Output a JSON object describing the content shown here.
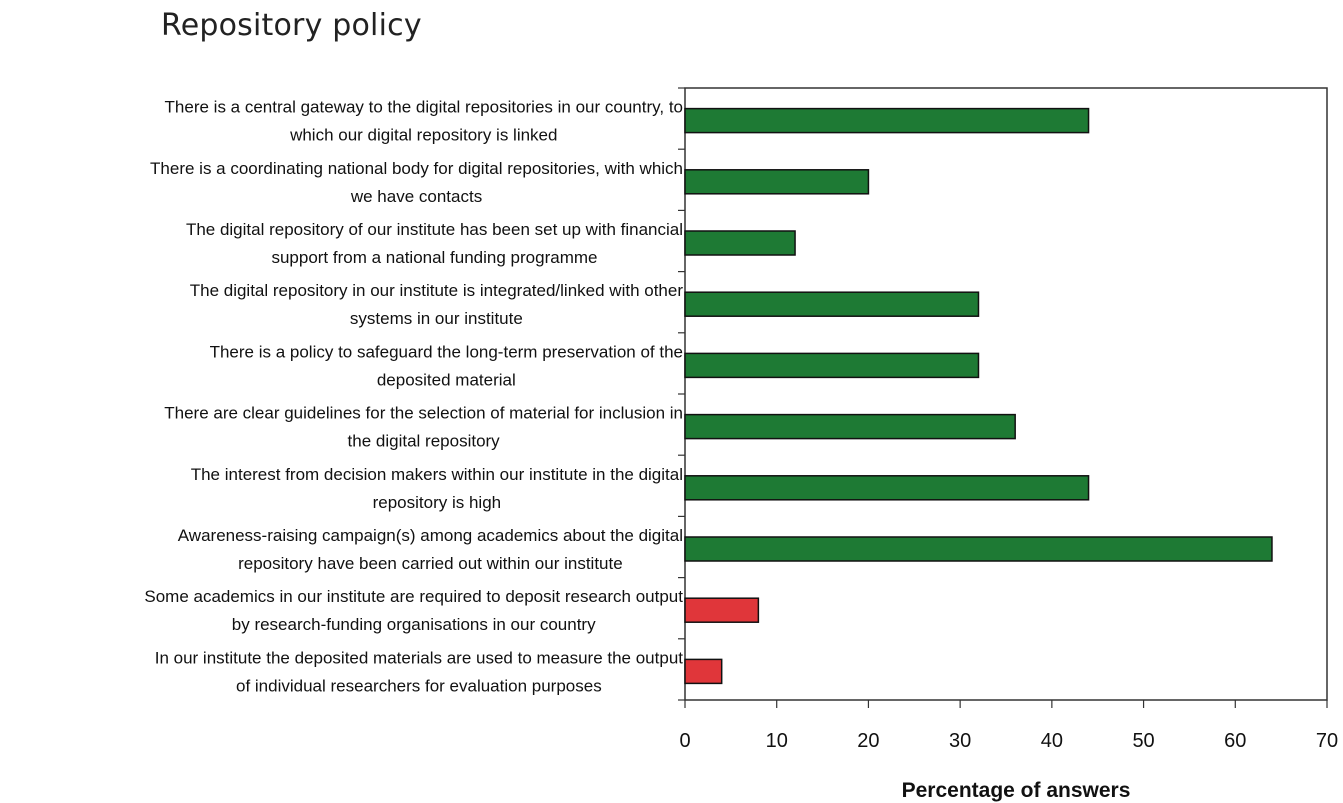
{
  "page": {
    "title": "Repository policy"
  },
  "chart_data": {
    "type": "bar",
    "orientation": "horizontal",
    "title": "Repository policy",
    "xlabel": "Percentage of answers",
    "ylabel": "",
    "xlim": [
      0,
      70
    ],
    "xticks": [
      0,
      10,
      20,
      30,
      40,
      50,
      60,
      70
    ],
    "grid": false,
    "categories": [
      [
        "There is a central gateway to the digital repositories in our country, to",
        "which our digital repository is linked"
      ],
      [
        "There is a coordinating national body for digital repositories, with which",
        "we have contacts"
      ],
      [
        "The digital repository of our institute has been set up with financial",
        "support from a national funding programme"
      ],
      [
        "The digital repository in our institute is integrated/linked with other",
        "systems in our institute"
      ],
      [
        "There is a policy to safeguard the long-term preservation of the",
        "deposited material"
      ],
      [
        "There are clear guidelines for the selection of material for inclusion in",
        "the digital repository"
      ],
      [
        "The interest from decision makers within our institute in the digital",
        "repository is high"
      ],
      [
        "Awareness-raising campaign(s) among academics about the digital",
        "repository have been carried out within our institute"
      ],
      [
        "Some academics in our institute are required to deposit research output",
        "by research-funding organisations in our country"
      ],
      [
        "In our institute the deposited materials are used to measure the output",
        "of individual researchers for evaluation purposes"
      ]
    ],
    "values": [
      44,
      20,
      12,
      32,
      32,
      36,
      44,
      64,
      8,
      4
    ],
    "bar_colors": [
      "#1e7a34",
      "#1e7a34",
      "#1e7a34",
      "#1e7a34",
      "#1e7a34",
      "#1e7a34",
      "#1e7a34",
      "#1e7a34",
      "#e0363a",
      "#e0363a"
    ]
  }
}
